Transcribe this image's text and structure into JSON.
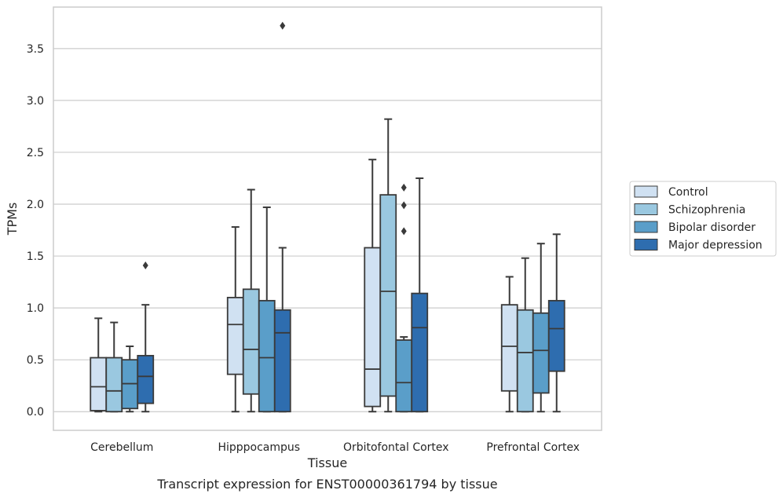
{
  "chart_data": {
    "type": "boxplot",
    "title": "",
    "caption": "Transcript expression for ENST00000361794 by tissue",
    "xlabel": "Tissue",
    "ylabel": "TPMs",
    "ylim": [
      -0.18,
      3.9
    ],
    "yticks": [
      "0.0",
      "0.5",
      "1.0",
      "1.5",
      "2.0",
      "2.5",
      "3.0",
      "3.5"
    ],
    "grid": "horizontal",
    "legend_position": "right",
    "categories": [
      "Cerebellum",
      "Hipppocampus",
      "Orbitofontal Cortex",
      "Prefrontal Cortex"
    ],
    "series": [
      {
        "name": "Control",
        "color": "#d0e1f2",
        "boxes": [
          {
            "whislo": 0.0,
            "q1": 0.01,
            "med": 0.24,
            "q3": 0.52,
            "whishi": 0.9,
            "fliers": []
          },
          {
            "whislo": 0.0,
            "q1": 0.36,
            "med": 0.84,
            "q3": 1.1,
            "whishi": 1.78,
            "fliers": []
          },
          {
            "whislo": 0.0,
            "q1": 0.05,
            "med": 0.41,
            "q3": 1.58,
            "whishi": 2.43,
            "fliers": []
          },
          {
            "whislo": 0.0,
            "q1": 0.2,
            "med": 0.63,
            "q3": 1.03,
            "whishi": 1.3,
            "fliers": []
          }
        ]
      },
      {
        "name": "Schizophrenia",
        "color": "#9ac8e0",
        "boxes": [
          {
            "whislo": 0.0,
            "q1": 0.0,
            "med": 0.2,
            "q3": 0.52,
            "whishi": 0.86,
            "fliers": []
          },
          {
            "whislo": 0.0,
            "q1": 0.17,
            "med": 0.6,
            "q3": 1.18,
            "whishi": 2.14,
            "fliers": []
          },
          {
            "whislo": 0.0,
            "q1": 0.15,
            "med": 1.16,
            "q3": 2.09,
            "whishi": 2.82,
            "fliers": []
          },
          {
            "whislo": 0.0,
            "q1": 0.0,
            "med": 0.57,
            "q3": 0.98,
            "whishi": 1.48,
            "fliers": []
          }
        ]
      },
      {
        "name": "Bipolar disorder",
        "color": "#5a9ec9",
        "boxes": [
          {
            "whislo": 0.0,
            "q1": 0.03,
            "med": 0.27,
            "q3": 0.5,
            "whishi": 0.63,
            "fliers": []
          },
          {
            "whislo": 0.0,
            "q1": 0.0,
            "med": 0.52,
            "q3": 1.07,
            "whishi": 1.97,
            "fliers": []
          },
          {
            "whislo": 0.0,
            "q1": 0.0,
            "med": 0.28,
            "q3": 0.69,
            "whishi": 0.72,
            "fliers": [
              1.74,
              1.99,
              2.16
            ]
          },
          {
            "whislo": 0.0,
            "q1": 0.18,
            "med": 0.59,
            "q3": 0.95,
            "whishi": 1.62,
            "fliers": []
          }
        ]
      },
      {
        "name": "Major depression",
        "color": "#2e6daf",
        "boxes": [
          {
            "whislo": 0.0,
            "q1": 0.08,
            "med": 0.34,
            "q3": 0.54,
            "whishi": 1.03,
            "fliers": [
              1.41
            ]
          },
          {
            "whislo": 0.0,
            "q1": 0.0,
            "med": 0.76,
            "q3": 0.98,
            "whishi": 1.58,
            "fliers": [
              3.72
            ]
          },
          {
            "whislo": 0.0,
            "q1": 0.0,
            "med": 0.81,
            "q3": 1.14,
            "whishi": 2.25,
            "fliers": []
          },
          {
            "whislo": 0.0,
            "q1": 0.39,
            "med": 0.8,
            "q3": 1.07,
            "whishi": 1.71,
            "fliers": []
          }
        ]
      }
    ]
  }
}
